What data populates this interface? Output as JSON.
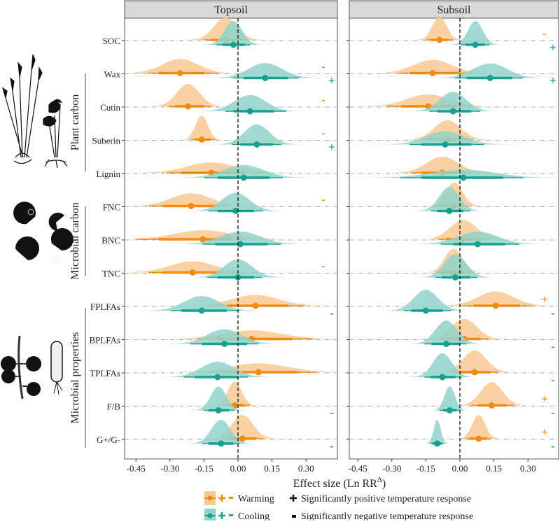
{
  "chart_data": {
    "type": "density-interval",
    "xlabel": "Effect size (Ln RR",
    "xlabel_sup": "Δ",
    "xlabel_end": ")",
    "xlim": [
      -0.5,
      0.42
    ],
    "xticks": [
      "-0.45",
      "-0.30",
      "-0.15",
      "0.00",
      "0.15",
      "0.30"
    ],
    "xtick_values": [
      -0.45,
      -0.3,
      -0.15,
      0.0,
      0.15,
      0.3
    ],
    "reference_line": 0,
    "grid": "horizontal dash-dot at each row",
    "colors": {
      "warming": "#f28a12",
      "warming_fill": "#f9c992",
      "cooling": "#16a090",
      "cooling_fill": "#8fd4ca"
    },
    "rows": [
      "SOC",
      "Wax",
      "Cutin",
      "Suberin",
      "Lignin",
      "FNC",
      "BNC",
      "TNC",
      "FPLFAs",
      "BPLFAs",
      "TPLFAs",
      "F/B",
      "G+/G-"
    ],
    "groups": [
      {
        "label": "Plant carbon",
        "rows": [
          "Wax",
          "Cutin",
          "Suberin",
          "Lignin"
        ]
      },
      {
        "label": "Microbial carbon",
        "rows": [
          "FNC",
          "BNC",
          "TNC"
        ]
      },
      {
        "label": "Microbial properties",
        "rows": [
          "FPLFAs",
          "BPLFAs",
          "TPLFAs",
          "F/B",
          "G+/G-"
        ]
      }
    ],
    "panels": [
      {
        "title": "Topsoil",
        "warming": [
          {
            "median": -0.056,
            "lo": -0.12,
            "hi": 0.01,
            "sig": ""
          },
          {
            "median": -0.255,
            "lo": -0.35,
            "hi": -0.145,
            "sig": "-"
          },
          {
            "median": -0.22,
            "lo": -0.28,
            "hi": -0.15,
            "sig": "-"
          },
          {
            "median": -0.16,
            "lo": -0.19,
            "hi": -0.12,
            "sig": "-"
          },
          {
            "median": -0.117,
            "lo": -0.25,
            "hi": 0.03,
            "sig": ""
          },
          {
            "median": -0.207,
            "lo": -0.33,
            "hi": -0.1,
            "sig": "-"
          },
          {
            "median": -0.155,
            "lo": -0.35,
            "hi": -0.03,
            "sig": ""
          },
          {
            "median": -0.2,
            "lo": -0.33,
            "hi": -0.07,
            "sig": "-"
          },
          {
            "median": 0.077,
            "lo": -0.05,
            "hi": 0.22,
            "sig": ""
          },
          {
            "median": 0.06,
            "lo": -0.1,
            "hi": 0.24,
            "sig": ""
          },
          {
            "median": 0.09,
            "lo": -0.07,
            "hi": 0.26,
            "sig": ""
          },
          {
            "median": -0.015,
            "lo": -0.05,
            "hi": 0.03,
            "sig": ""
          },
          {
            "median": 0.02,
            "lo": -0.04,
            "hi": 0.08,
            "sig": ""
          }
        ],
        "cooling": [
          {
            "median": -0.02,
            "lo": -0.07,
            "hi": 0.03,
            "sig": ""
          },
          {
            "median": 0.12,
            "lo": 0.025,
            "hi": 0.22,
            "sig": "+"
          },
          {
            "median": 0.053,
            "lo": -0.02,
            "hi": 0.16,
            "sig": ""
          },
          {
            "median": 0.083,
            "lo": 0.01,
            "hi": 0.155,
            "sig": "+"
          },
          {
            "median": 0.025,
            "lo": -0.09,
            "hi": 0.14,
            "sig": ""
          },
          {
            "median": -0.01,
            "lo": -0.09,
            "hi": 0.07,
            "sig": ""
          },
          {
            "median": 0.01,
            "lo": -0.1,
            "hi": 0.13,
            "sig": ""
          },
          {
            "median": 0.0,
            "lo": -0.09,
            "hi": 0.07,
            "sig": ""
          },
          {
            "median": -0.16,
            "lo": -0.25,
            "hi": -0.05,
            "sig": "-"
          },
          {
            "median": -0.06,
            "lo": -0.16,
            "hi": 0.04,
            "sig": ""
          },
          {
            "median": -0.09,
            "lo": -0.19,
            "hi": 0.0,
            "sig": ""
          },
          {
            "median": -0.086,
            "lo": -0.13,
            "hi": -0.04,
            "sig": "-"
          },
          {
            "median": -0.075,
            "lo": -0.13,
            "hi": -0.02,
            "sig": "-"
          }
        ]
      },
      {
        "title": "Subsoil",
        "warming": [
          {
            "median": -0.09,
            "lo": -0.13,
            "hi": -0.05,
            "sig": "-"
          },
          {
            "median": -0.12,
            "lo": -0.22,
            "hi": 0.0,
            "sig": ""
          },
          {
            "median": -0.14,
            "lo": -0.26,
            "hi": -0.015,
            "sig": ""
          },
          {
            "median": -0.055,
            "lo": -0.13,
            "hi": 0.02,
            "sig": ""
          },
          {
            "median": -0.077,
            "lo": -0.17,
            "hi": 0.01,
            "sig": ""
          },
          {
            "median": -0.025,
            "lo": -0.08,
            "hi": 0.015,
            "sig": ""
          },
          {
            "median": 0.015,
            "lo": -0.06,
            "hi": 0.09,
            "sig": ""
          },
          {
            "median": -0.028,
            "lo": -0.08,
            "hi": 0.02,
            "sig": ""
          },
          {
            "median": 0.158,
            "lo": 0.06,
            "hi": 0.265,
            "sig": "+"
          },
          {
            "median": 0.019,
            "lo": -0.055,
            "hi": 0.09,
            "sig": ""
          },
          {
            "median": 0.065,
            "lo": 0.0,
            "hi": 0.134,
            "sig": ""
          },
          {
            "median": 0.14,
            "lo": 0.08,
            "hi": 0.205,
            "sig": "+"
          },
          {
            "median": 0.083,
            "lo": 0.045,
            "hi": 0.12,
            "sig": "+"
          }
        ],
        "cooling": [
          {
            "median": 0.068,
            "lo": 0.025,
            "hi": 0.11,
            "sig": "+"
          },
          {
            "median": 0.133,
            "lo": 0.03,
            "hi": 0.23,
            "sig": "+"
          },
          {
            "median": -0.03,
            "lo": -0.1,
            "hi": 0.05,
            "sig": ""
          },
          {
            "median": -0.065,
            "lo": -0.17,
            "hi": 0.05,
            "sig": ""
          },
          {
            "median": 0.015,
            "lo": -0.17,
            "hi": 0.19,
            "sig": ""
          },
          {
            "median": -0.047,
            "lo": -0.1,
            "hi": 0.015,
            "sig": ""
          },
          {
            "median": 0.078,
            "lo": -0.03,
            "hi": 0.2,
            "sig": ""
          },
          {
            "median": -0.02,
            "lo": -0.08,
            "hi": 0.045,
            "sig": ""
          },
          {
            "median": -0.15,
            "lo": -0.215,
            "hi": -0.075,
            "sig": "-"
          },
          {
            "median": -0.06,
            "lo": -0.125,
            "hi": 0.0,
            "sig": "-"
          },
          {
            "median": -0.077,
            "lo": -0.13,
            "hi": -0.02,
            "sig": "-"
          },
          {
            "median": -0.045,
            "lo": -0.075,
            "hi": -0.015,
            "sig": "-"
          },
          {
            "median": -0.1,
            "lo": -0.12,
            "hi": -0.08,
            "sig": "-"
          }
        ]
      }
    ],
    "legend": {
      "placement": "bottom",
      "warming": "Warming",
      "cooling": "Cooling",
      "positive": "Significantly positive temperature response",
      "negative": "Significantly negative temperature response"
    }
  },
  "icons": [
    "plant-illustration-icon",
    "pacman-microbe-icon",
    "fungi-bacteria-icon"
  ]
}
